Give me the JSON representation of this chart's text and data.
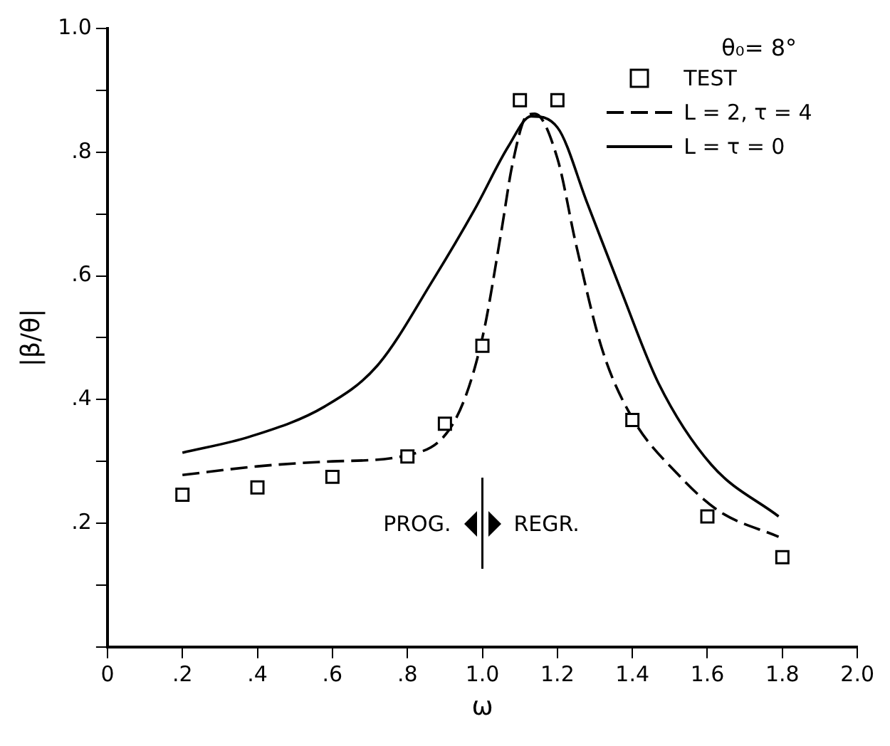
{
  "chart_data": {
    "type": "scatter",
    "xlabel": "ω",
    "ylabel": "|β/θ|",
    "legend_title": "θ₀= 8°",
    "xlim": [
      0,
      2.0
    ],
    "xticks": [
      {
        "value": 0,
        "label": "0"
      },
      {
        "value": 0.2,
        "label": ".2"
      },
      {
        "value": 0.4,
        "label": ".4"
      },
      {
        "value": 0.6,
        "label": ".6"
      },
      {
        "value": 0.8,
        "label": ".8"
      },
      {
        "value": 1.0,
        "label": "1.0"
      },
      {
        "value": 1.2,
        "label": "1.2"
      },
      {
        "value": 1.4,
        "label": "1.4"
      },
      {
        "value": 1.6,
        "label": "1.6"
      },
      {
        "value": 1.8,
        "label": "1.8"
      },
      {
        "value": 2.0,
        "label": "2.0"
      }
    ],
    "ylim": [
      0,
      1.0
    ],
    "yticks": [
      {
        "value": 0,
        "label": null
      },
      {
        "value": 0.1,
        "label": null
      },
      {
        "value": 0.2,
        "label": ".2"
      },
      {
        "value": 0.3,
        "label": null
      },
      {
        "value": 0.4,
        "label": ".4"
      },
      {
        "value": 0.5,
        "label": null
      },
      {
        "value": 0.6,
        "label": ".6"
      },
      {
        "value": 0.7,
        "label": null
      },
      {
        "value": 0.8,
        "label": ".8"
      },
      {
        "value": 0.9,
        "label": null
      },
      {
        "value": 1.0,
        "label": "1.0"
      }
    ],
    "grid": false,
    "legend": "top right",
    "ref_lines": [
      {
        "axis": "x",
        "value": 1.0,
        "label": "PROG.  REGR."
      }
    ],
    "series": [
      {
        "name": "TEST",
        "marker": "square",
        "color": "#000000",
        "x": [
          0.2,
          0.4,
          0.6,
          0.8,
          0.9,
          1.0,
          1.1,
          1.2,
          1.4,
          1.6,
          1.8
        ],
        "values": [
          0.246,
          0.258,
          0.275,
          0.308,
          0.361,
          0.487,
          0.884,
          0.884,
          0.367,
          0.211,
          0.145
        ]
      },
      {
        "name": "L = 2, τ = 4",
        "type": "line",
        "line_style": "dashed",
        "marker": "none",
        "color": "#000000",
        "x": [
          0.2,
          0.4,
          0.6,
          0.8,
          0.93,
          1.0,
          1.05,
          1.08,
          1.12,
          1.14,
          1.2,
          1.25,
          1.32,
          1.4,
          1.52,
          1.63,
          1.79
        ],
        "values": [
          0.278,
          0.292,
          0.3,
          0.31,
          0.37,
          0.5,
          0.67,
          0.78,
          0.86,
          0.862,
          0.79,
          0.65,
          0.48,
          0.37,
          0.28,
          0.22,
          0.178
        ]
      },
      {
        "name": "L = τ = 0",
        "type": "line",
        "line_style": "solid",
        "marker": "none",
        "color": "#000000",
        "x": [
          0.2,
          0.38,
          0.58,
          0.72,
          0.87,
          0.98,
          1.07,
          1.13,
          1.2,
          1.28,
          1.37,
          1.47,
          1.61,
          1.79
        ],
        "values": [
          0.314,
          0.34,
          0.389,
          0.455,
          0.595,
          0.708,
          0.81,
          0.858,
          0.84,
          0.717,
          0.576,
          0.426,
          0.295,
          0.211
        ]
      }
    ]
  }
}
